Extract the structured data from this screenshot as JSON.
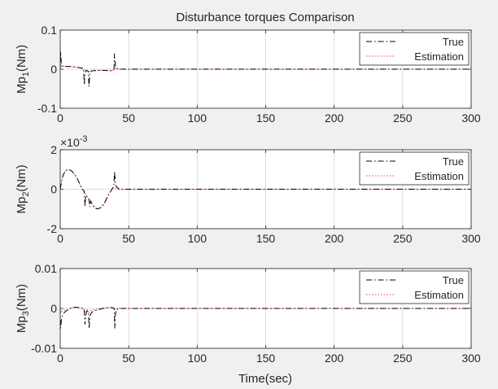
{
  "figure": {
    "title": "Disturbance torques Comparison",
    "xlabel": "Time(sec)"
  },
  "chart_data": [
    {
      "type": "line",
      "title": "Disturbance torques Comparison",
      "ylabel": {
        "base": "Mp",
        "sub": "1",
        "unit": "(Nm)"
      },
      "xlabel": "",
      "xlim": [
        0,
        300
      ],
      "ylim": [
        -0.1,
        0.1
      ],
      "xticks": [
        0,
        50,
        100,
        150,
        200,
        250,
        300
      ],
      "yticks": [
        -0.1,
        0,
        0.1
      ],
      "ytick_labels": [
        "-0.1",
        "0",
        "0.1"
      ],
      "exponent": "",
      "grid": true,
      "legend": {
        "placement": "top-right",
        "entries": [
          "True",
          "Estimation"
        ]
      },
      "series": [
        {
          "name": "True",
          "color": "#000000",
          "style": "dash-dot",
          "x": [
            0,
            0.3,
            0.8,
            1.5,
            3,
            6,
            10,
            14,
            17,
            17.6,
            18.1,
            18.7,
            19.4,
            20.5,
            21,
            21.6,
            22.3,
            24,
            28,
            33,
            37,
            39.2,
            39.6,
            40,
            40.4,
            41,
            43,
            46,
            60,
            100,
            150,
            200,
            250,
            300
          ],
          "y": [
            0,
            0.045,
            0.015,
            0.008,
            0.007,
            0.007,
            0.006,
            0.004,
            0.002,
            -0.04,
            -0.01,
            -0.004,
            -0.003,
            -0.006,
            -0.045,
            -0.012,
            -0.005,
            -0.004,
            -0.003,
            -0.003,
            -0.004,
            -0.001,
            0.04,
            0.02,
            0.006,
            0.002,
            0,
            0,
            0,
            0,
            0,
            0,
            0,
            0
          ]
        },
        {
          "name": "Estimation",
          "color": "#ff6b6b",
          "style": "dotted",
          "x": [
            0,
            0.5,
            1.5,
            3,
            6,
            10,
            14,
            17,
            18.5,
            20,
            21.5,
            24,
            28,
            33,
            37,
            39.5,
            40.5,
            41.5,
            43,
            46,
            60,
            100,
            150,
            200,
            250,
            300
          ],
          "y": [
            0,
            0.008,
            0.007,
            0.007,
            0.007,
            0.006,
            0.004,
            0.001,
            -0.004,
            -0.004,
            -0.006,
            -0.004,
            -0.003,
            -0.003,
            -0.004,
            -0.002,
            0.004,
            0.002,
            0,
            0,
            0,
            0,
            0,
            0,
            0,
            0
          ]
        }
      ]
    },
    {
      "type": "line",
      "title": "",
      "ylabel": {
        "base": "Mp",
        "sub": "2",
        "unit": "(Nm)"
      },
      "xlabel": "",
      "xlim": [
        0,
        300
      ],
      "ylim": [
        -0.002,
        0.002
      ],
      "xticks": [
        0,
        50,
        100,
        150,
        200,
        250,
        300
      ],
      "yticks": [
        -0.002,
        0,
        0.002
      ],
      "ytick_labels": [
        "-2",
        "0",
        "2"
      ],
      "exponent": "-3",
      "grid": true,
      "legend": {
        "placement": "top-right",
        "entries": [
          "True",
          "Estimation"
        ]
      },
      "series": [
        {
          "name": "True",
          "color": "#000000",
          "style": "dash-dot",
          "x": [
            0,
            1,
            2,
            4,
            6,
            8,
            10,
            12,
            14,
            16,
            17.6,
            18.1,
            18.6,
            20,
            21,
            21.6,
            22.2,
            23,
            25,
            27,
            29,
            31,
            33,
            35,
            37,
            38.5,
            39.2,
            39.6,
            40,
            40.5,
            41.5,
            43,
            46,
            60,
            100,
            150,
            200,
            250,
            300
          ],
          "y": [
            0,
            0.0004,
            0.0007,
            0.00095,
            0.001,
            0.00095,
            0.0008,
            0.0006,
            0.0003,
            0,
            -0.0001,
            -0.0009,
            -0.0003,
            -0.0004,
            -0.0005,
            -0.0009,
            -0.0006,
            -0.0007,
            -0.00095,
            -0.001,
            -0.00095,
            -0.0008,
            -0.0006,
            -0.0003,
            -0.0001,
            0.0001,
            0.0002,
            0.0009,
            0.0006,
            0.0002,
            0.0001,
            0,
            0,
            0,
            0,
            0,
            0,
            0,
            0
          ]
        },
        {
          "name": "Estimation",
          "color": "#ff6b6b",
          "style": "dotted",
          "x": [
            0,
            1,
            2,
            4,
            6,
            8,
            10,
            12,
            14,
            16,
            18,
            20,
            22,
            24,
            26,
            28,
            30,
            32,
            34,
            36,
            38,
            40,
            42,
            45,
            60,
            100,
            150,
            200,
            250,
            300
          ],
          "y": [
            0,
            0.0004,
            0.0007,
            0.00095,
            0.001,
            0.00095,
            0.0008,
            0.0006,
            0.0003,
            0,
            -0.0002,
            -0.0004,
            -0.0006,
            -0.0008,
            -0.00095,
            -0.001,
            -0.00095,
            -0.0008,
            -0.0005,
            -0.0002,
            0,
            0.0001,
            0,
            0,
            0,
            0,
            0,
            0,
            0,
            0
          ]
        }
      ]
    },
    {
      "type": "line",
      "title": "",
      "ylabel": {
        "base": "Mp",
        "sub": "3",
        "unit": "(Nm)"
      },
      "xlabel": "Time(sec)",
      "xlim": [
        0,
        300
      ],
      "ylim": [
        -0.01,
        0.01
      ],
      "xticks": [
        0,
        50,
        100,
        150,
        200,
        250,
        300
      ],
      "yticks": [
        -0.01,
        0,
        0.01
      ],
      "ytick_labels": [
        "-0.01",
        "0",
        "0.01"
      ],
      "exponent": "",
      "grid": true,
      "legend": {
        "placement": "top-right",
        "entries": [
          "True",
          "Estimation"
        ]
      },
      "series": [
        {
          "name": "True",
          "color": "#000000",
          "style": "dash-dot",
          "x": [
            0,
            0.3,
            0.8,
            1.5,
            3,
            5,
            8,
            11,
            14,
            16,
            17.5,
            18.1,
            18.7,
            19.5,
            20.5,
            21.1,
            21.7,
            22.5,
            24,
            27,
            31,
            35,
            38,
            39.4,
            39.8,
            40.3,
            41,
            43,
            46,
            60,
            100,
            150,
            200,
            250,
            300
          ],
          "y": [
            0,
            -0.005,
            -0.003,
            -0.002,
            -0.001,
            -0.0005,
            0.0001,
            0.0003,
            0.0002,
            0,
            -0.0001,
            -0.004,
            -0.0015,
            -0.0006,
            -0.0008,
            -0.005,
            -0.0018,
            -0.0012,
            -0.0007,
            -0.0004,
            0,
            0.0002,
            0.0002,
            0,
            -0.005,
            -0.0015,
            -0.0003,
            0,
            0,
            0,
            0,
            0,
            0,
            0,
            0
          ]
        },
        {
          "name": "Estimation",
          "color": "#ff6b6b",
          "style": "dotted",
          "x": [
            0,
            1,
            3,
            6,
            9,
            12,
            15,
            17,
            18,
            19,
            20,
            21,
            22,
            24,
            27,
            31,
            35,
            38,
            40,
            42,
            45,
            60,
            100,
            150,
            200,
            250,
            300
          ],
          "y": [
            0,
            -0.0008,
            -0.0005,
            -0.0002,
            0.0002,
            0.0003,
            0.0002,
            0,
            -0.0008,
            -0.0004,
            -0.0003,
            -0.0009,
            -0.0005,
            -0.0004,
            -0.0002,
            0,
            0.0002,
            0.0002,
            -0.0002,
            0,
            0,
            0,
            0,
            0,
            0,
            0,
            0
          ]
        }
      ]
    }
  ]
}
